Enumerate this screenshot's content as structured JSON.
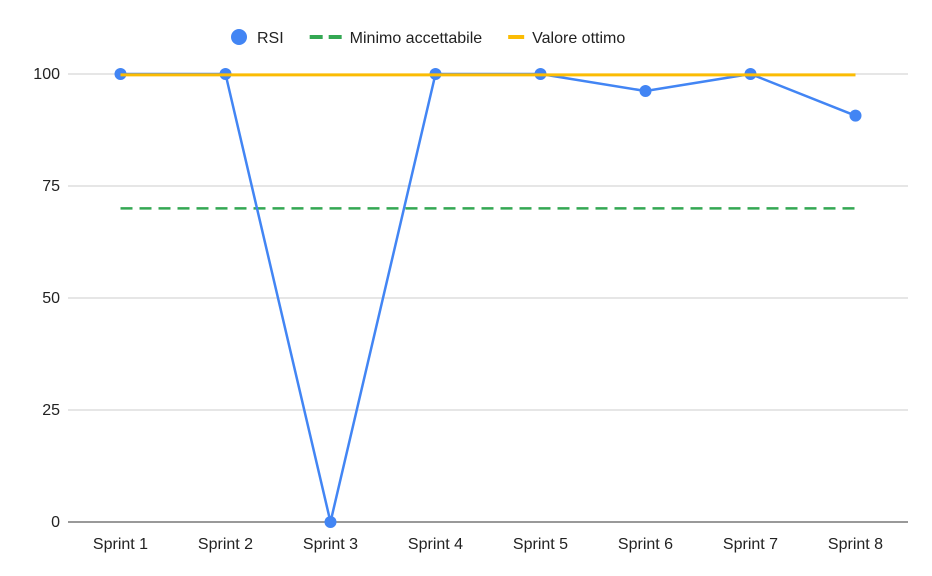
{
  "chart_data": {
    "type": "line",
    "categories": [
      "Sprint 1",
      "Sprint 2",
      "Sprint 3",
      "Sprint 4",
      "Sprint 5",
      "Sprint 6",
      "Sprint 7",
      "Sprint 8"
    ],
    "series": [
      {
        "name": "RSI",
        "values": [
          100,
          100,
          0,
          100,
          100,
          96.2,
          100,
          90.7
        ],
        "color": "#4285F4",
        "style": "solid-with-markers"
      },
      {
        "name": "Minimo accettabile",
        "values": [
          70,
          70,
          70,
          70,
          70,
          70,
          70,
          70
        ],
        "color": "#34A853",
        "style": "dashed"
      },
      {
        "name": "Valore ottimo",
        "values": [
          99.8,
          99.8,
          99.8,
          99.8,
          99.8,
          99.8,
          99.8,
          99.8
        ],
        "color": "#FBBC04",
        "style": "solid"
      }
    ],
    "yticks": [
      "0",
      "25",
      "50",
      "75",
      "100"
    ],
    "ylim": [
      0,
      100
    ],
    "grid": true,
    "legend_position": "top"
  }
}
